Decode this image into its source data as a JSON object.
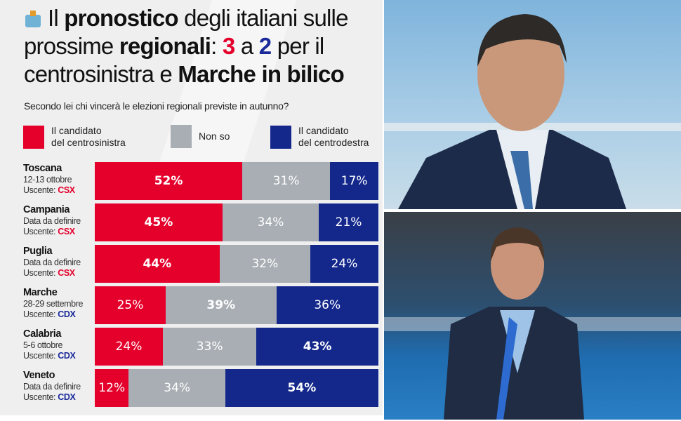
{
  "title": {
    "p1": "Il ",
    "b1": "pronostico",
    "p2": " degli italiani sulle prossime ",
    "b2": "regionali",
    "p3": ": ",
    "n1": "3",
    "p4": " a ",
    "n2": "2",
    "p5": " per il centrosinistra e ",
    "b3": "Marche in bilico"
  },
  "question": "Secondo lei chi vincerà le elezioni regionali previste in autunno?",
  "legend": [
    {
      "label1": "Il candidato",
      "label2": "del centrosinistra",
      "color": "#e4002b"
    },
    {
      "label1": "Non so",
      "label2": "",
      "color": "#a8aeb3"
    },
    {
      "label1": "Il candidato",
      "label2": "del centrodestra",
      "color": "#14288c"
    }
  ],
  "chart_data": {
    "type": "bar",
    "stacked": true,
    "orientation": "horizontal",
    "title": "Il pronostico degli italiani sulle prossime regionali",
    "series_names": [
      "Il candidato del centrosinistra",
      "Non so",
      "Il candidato del centrodestra"
    ],
    "colors": [
      "#e4002b",
      "#a8aeb3",
      "#14288c"
    ],
    "rows": [
      {
        "region": "Toscana",
        "date": "12-13 ottobre",
        "incumbent_label": "Uscente: ",
        "incumbent": "CSX",
        "values": [
          52,
          31,
          17
        ]
      },
      {
        "region": "Campania",
        "date": "Data da definire",
        "incumbent_label": "Uscente: ",
        "incumbent": "CSX",
        "values": [
          45,
          34,
          21
        ]
      },
      {
        "region": "Puglia",
        "date": "Data da definire",
        "incumbent_label": "Uscente: ",
        "incumbent": "CSX",
        "values": [
          44,
          32,
          24
        ]
      },
      {
        "region": "Marche",
        "date": "28-29 settembre",
        "incumbent_label": "Uscente: ",
        "incumbent": "CDX",
        "values": [
          25,
          39,
          36
        ]
      },
      {
        "region": "Calabria",
        "date": "5-6 ottobre",
        "incumbent_label": "Uscente: ",
        "incumbent": "CDX",
        "values": [
          24,
          33,
          43
        ]
      },
      {
        "region": "Veneto",
        "date": "Data da definire",
        "incumbent_label": "Uscente: ",
        "incumbent": "CDX",
        "values": [
          12,
          34,
          54
        ]
      }
    ],
    "unit": "%"
  }
}
